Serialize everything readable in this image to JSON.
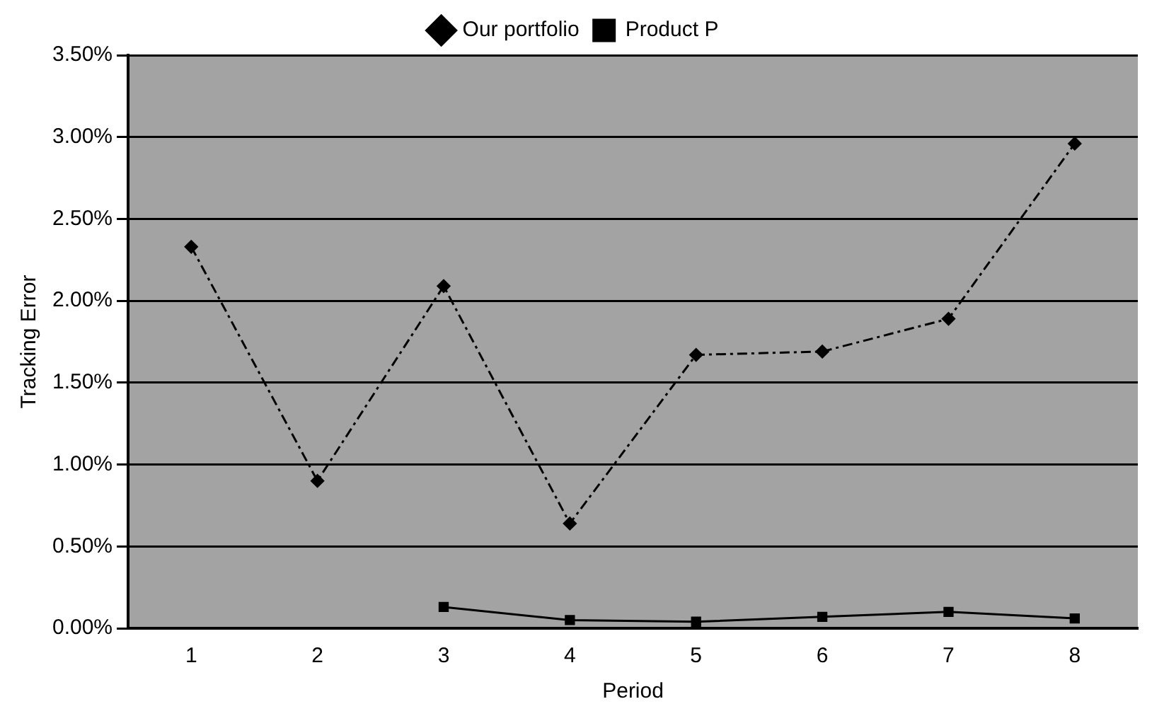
{
  "chart_data": {
    "type": "line",
    "xlabel": "Period",
    "ylabel": "Tracking Error",
    "categories": [
      "1",
      "2",
      "3",
      "4",
      "5",
      "6",
      "7",
      "8"
    ],
    "series": [
      {
        "name": "Our portfolio",
        "color": "#000000",
        "marker": "diamond",
        "line_style": "dashed",
        "values": [
          2.33,
          0.9,
          2.09,
          0.64,
          1.67,
          1.69,
          1.89,
          2.96
        ]
      },
      {
        "name": "Product P",
        "color": "#000000",
        "marker": "square",
        "line_style": "solid",
        "values": [
          null,
          null,
          0.13,
          0.05,
          0.04,
          0.07,
          0.1,
          0.06
        ]
      }
    ],
    "ylim": [
      0,
      3.5
    ],
    "yticks": [
      {
        "value": 0,
        "label": "0.00%"
      },
      {
        "value": 0.5,
        "label": "0.50%"
      },
      {
        "value": 1,
        "label": "1.00%"
      },
      {
        "value": 1.5,
        "label": "1.50%"
      },
      {
        "value": 2,
        "label": "2.00%"
      },
      {
        "value": 2.5,
        "label": "2.50%"
      },
      {
        "value": 3,
        "label": "3.00%"
      },
      {
        "value": 3.5,
        "label": "3.50%"
      }
    ],
    "grid": "y",
    "legend": "top"
  }
}
